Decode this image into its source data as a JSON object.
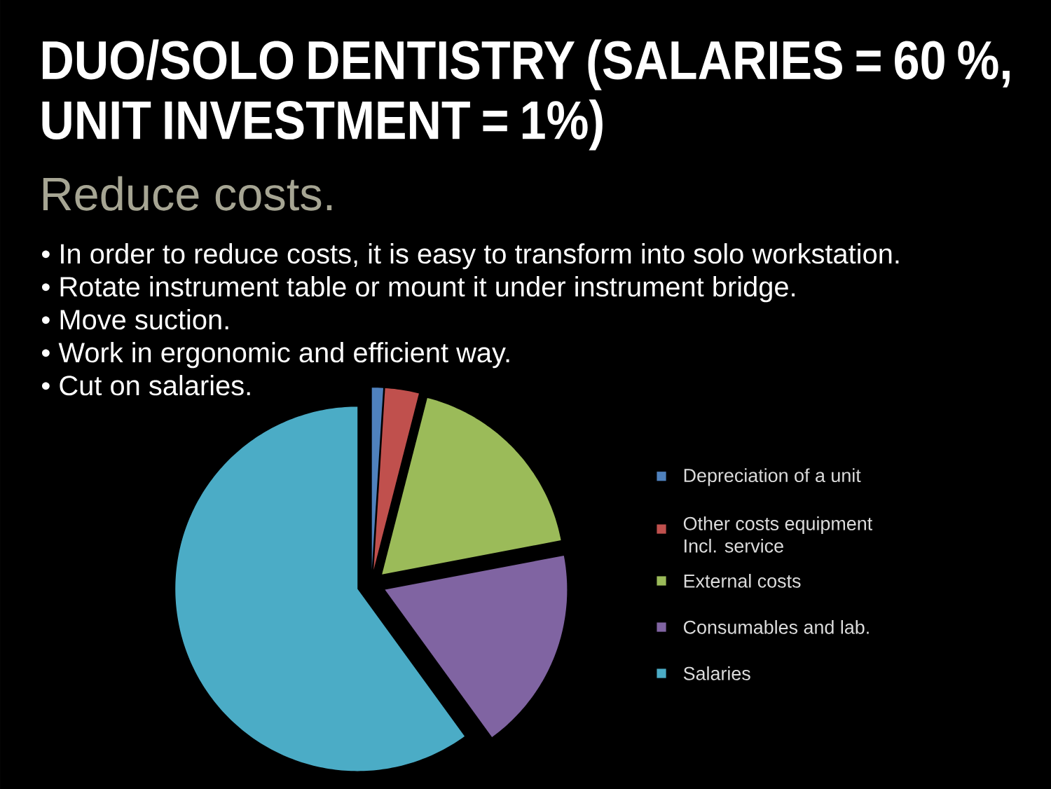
{
  "chart_data": {
    "type": "pie",
    "title": "DUO/SOLO DENTISTRY (SALARIES = 60 %, UNIT INVESTMENT = 1%)",
    "subtitle": "Reduce costs.",
    "annotations": [
      "• In order to reduce costs, it is easy to transform into solo workstation.",
      "• Rotate instrument table or mount it under instrument bridge.",
      "• Move suction.",
      "• Work in ergonomic and efficient way.",
      "• Cut on salaries."
    ],
    "categories": [
      "Depreciation of a unit",
      "Other costs equipment Incl. service",
      "External costs",
      "Consumables and lab.",
      "Salaries"
    ],
    "values": [
      1,
      3,
      18,
      18,
      60
    ],
    "colors": [
      "#4f81bd",
      "#c0504d",
      "#9bbb59",
      "#8064a2",
      "#4bacc6"
    ],
    "legend": "right"
  }
}
